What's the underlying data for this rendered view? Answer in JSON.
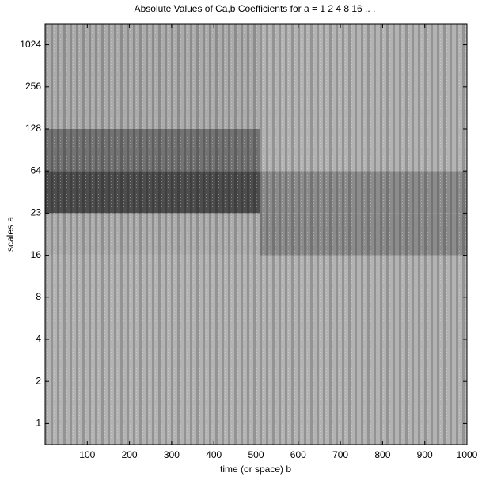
{
  "chart_data": {
    "type": "heatmap",
    "title": "Absolute Values of Ca,b Coefficients for a =  1 2 4 8 16 ..  .",
    "xlabel": "time (or space) b",
    "ylabel": "scales a",
    "x_edges": [
      0,
      510,
      1000
    ],
    "y_edges": [
      0.5,
      5.0,
      6.0,
      7.0,
      8.0,
      10.5
    ],
    "z": [
      [
        0.3,
        0.3
      ],
      [
        0.32,
        0.45
      ],
      [
        0.7,
        0.45
      ],
      [
        0.55,
        0.3
      ],
      [
        0.33,
        0.3
      ]
    ],
    "xlim": [
      0,
      1000
    ],
    "xticks": [
      100,
      200,
      300,
      400,
      500,
      600,
      700,
      800,
      900,
      1000
    ],
    "ylim": [
      0.5,
      10.5
    ],
    "yticks": [
      {
        "value": 1,
        "label": "1"
      },
      {
        "value": 2,
        "label": "2"
      },
      {
        "value": 3,
        "label": "4"
      },
      {
        "value": 4,
        "label": "8"
      },
      {
        "value": 5,
        "label": "16"
      },
      {
        "value": 6,
        "label": "23"
      },
      {
        "value": 7,
        "label": "64"
      },
      {
        "value": 8,
        "label": "128"
      },
      {
        "value": 9,
        "label": "256"
      },
      {
        "value": 10,
        "label": "1024"
      }
    ]
  }
}
